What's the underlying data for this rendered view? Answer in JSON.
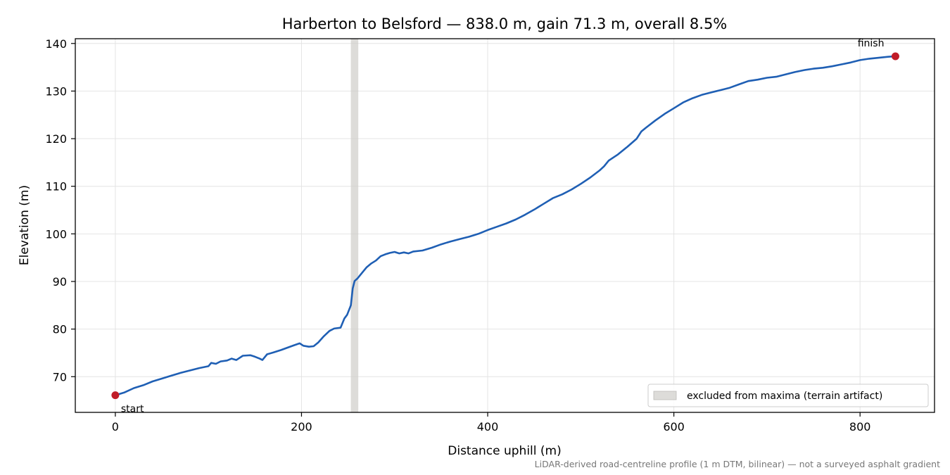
{
  "chart_data": {
    "type": "line",
    "title": "Harberton to Belsford — 838.0 m, gain 71.3 m, overall 8.5%",
    "xlabel": "Distance uphill (m)",
    "ylabel": "Elevation (m)",
    "xlim": [
      -43,
      880
    ],
    "ylim": [
      62.5,
      141
    ],
    "xticks": [
      0,
      200,
      400,
      600,
      800
    ],
    "yticks": [
      70,
      80,
      90,
      100,
      110,
      120,
      130,
      140
    ],
    "grid": true,
    "series": [
      {
        "name": "",
        "color": "#1f5fb4",
        "points": [
          [
            0,
            66.1
          ],
          [
            10,
            66.7
          ],
          [
            20,
            67.6
          ],
          [
            30,
            68.2
          ],
          [
            40,
            69.0
          ],
          [
            50,
            69.6
          ],
          [
            60,
            70.2
          ],
          [
            70,
            70.8
          ],
          [
            80,
            71.3
          ],
          [
            90,
            71.8
          ],
          [
            100,
            72.2
          ],
          [
            103,
            72.9
          ],
          [
            108,
            72.7
          ],
          [
            113,
            73.2
          ],
          [
            120,
            73.4
          ],
          [
            125,
            73.8
          ],
          [
            130,
            73.5
          ],
          [
            137,
            74.4
          ],
          [
            145,
            74.5
          ],
          [
            150,
            74.2
          ],
          [
            155,
            73.8
          ],
          [
            158,
            73.5
          ],
          [
            163,
            74.7
          ],
          [
            170,
            75.1
          ],
          [
            178,
            75.6
          ],
          [
            185,
            76.1
          ],
          [
            192,
            76.6
          ],
          [
            198,
            77.0
          ],
          [
            202,
            76.5
          ],
          [
            208,
            76.3
          ],
          [
            213,
            76.4
          ],
          [
            218,
            77.2
          ],
          [
            224,
            78.5
          ],
          [
            230,
            79.6
          ],
          [
            235,
            80.1
          ],
          [
            242,
            80.3
          ],
          [
            246,
            82.2
          ],
          [
            249,
            83.0
          ],
          [
            253,
            85.0
          ],
          [
            255,
            88.5
          ],
          [
            257,
            90.1
          ],
          [
            260,
            90.6
          ],
          [
            265,
            91.8
          ],
          [
            270,
            93.0
          ],
          [
            275,
            93.8
          ],
          [
            280,
            94.4
          ],
          [
            285,
            95.3
          ],
          [
            290,
            95.7
          ],
          [
            295,
            96.0
          ],
          [
            300,
            96.2
          ],
          [
            305,
            95.9
          ],
          [
            310,
            96.1
          ],
          [
            315,
            95.9
          ],
          [
            320,
            96.3
          ],
          [
            330,
            96.5
          ],
          [
            340,
            97.1
          ],
          [
            350,
            97.8
          ],
          [
            360,
            98.4
          ],
          [
            370,
            98.9
          ],
          [
            380,
            99.4
          ],
          [
            390,
            100.0
          ],
          [
            400,
            100.8
          ],
          [
            410,
            101.5
          ],
          [
            420,
            102.2
          ],
          [
            430,
            103.0
          ],
          [
            440,
            104.0
          ],
          [
            450,
            105.1
          ],
          [
            460,
            106.3
          ],
          [
            470,
            107.5
          ],
          [
            480,
            108.3
          ],
          [
            490,
            109.3
          ],
          [
            500,
            110.5
          ],
          [
            510,
            111.8
          ],
          [
            520,
            113.3
          ],
          [
            525,
            114.2
          ],
          [
            530,
            115.4
          ],
          [
            540,
            116.7
          ],
          [
            550,
            118.3
          ],
          [
            560,
            120.0
          ],
          [
            565,
            121.5
          ],
          [
            570,
            122.3
          ],
          [
            580,
            123.8
          ],
          [
            590,
            125.2
          ],
          [
            600,
            126.4
          ],
          [
            610,
            127.6
          ],
          [
            620,
            128.5
          ],
          [
            630,
            129.2
          ],
          [
            640,
            129.7
          ],
          [
            650,
            130.2
          ],
          [
            660,
            130.7
          ],
          [
            670,
            131.4
          ],
          [
            680,
            132.1
          ],
          [
            690,
            132.4
          ],
          [
            700,
            132.8
          ],
          [
            710,
            133.0
          ],
          [
            720,
            133.5
          ],
          [
            730,
            134.0
          ],
          [
            740,
            134.4
          ],
          [
            750,
            134.7
          ],
          [
            760,
            134.9
          ],
          [
            770,
            135.2
          ],
          [
            780,
            135.6
          ],
          [
            790,
            136.0
          ],
          [
            800,
            136.5
          ],
          [
            810,
            136.8
          ],
          [
            820,
            137.0
          ],
          [
            830,
            137.2
          ],
          [
            838,
            137.3
          ]
        ]
      }
    ],
    "markers": [
      {
        "label": "start",
        "x": 0,
        "y": 66.1,
        "color": "#c01c28"
      },
      {
        "label": "finish",
        "x": 838,
        "y": 137.3,
        "color": "#c01c28"
      }
    ],
    "excluded_band": {
      "x0": 253,
      "x1": 261,
      "color": "#cfcdc9"
    },
    "legend": {
      "position": "bottom-right",
      "label": "excluded from maxima (terrain artifact)"
    },
    "note": "LiDAR-derived road-centreline profile (1 m DTM, bilinear) — not a surveyed asphalt gradient"
  }
}
